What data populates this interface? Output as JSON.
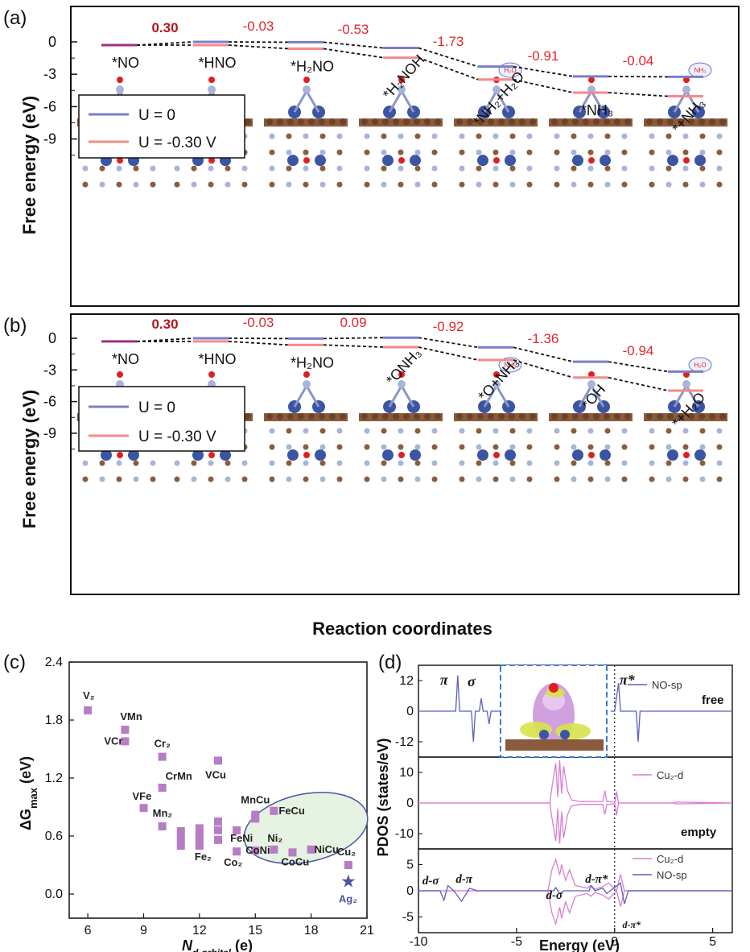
{
  "colors": {
    "u0": "#7b7fc8",
    "um030": "#f48a8a",
    "no_line": "#a0317e",
    "delta_red": "#e3262b",
    "scatter": "#b77dc4",
    "ellipse_fill": "#e6f2e2",
    "ellipse_stroke": "#4a55a0",
    "pdos_cu": "#d97fcf",
    "pdos_no": "#5a5fbf",
    "sub_brown": "#8a5a3c",
    "sub_blue": "#3b55a3",
    "sub_light": "#aab3d8"
  },
  "panel_a": {
    "label": "(a)",
    "ylabel": "Free energy (eV)",
    "yticks": [
      "0",
      "-3",
      "-6",
      "-9"
    ],
    "legend": [
      "U = 0",
      "U = -0.30 V"
    ],
    "steps": [
      "*NO",
      "*HNO",
      "*H₂NO",
      "*H₂NOH",
      "*NH₂+H₂O",
      "*NH₃",
      "*+NH₃"
    ],
    "u0": [
      -0.3,
      0.0,
      -0.03,
      -0.56,
      -2.29,
      -3.2,
      -3.24
    ],
    "um": [
      -0.3,
      -0.3,
      -0.63,
      -1.46,
      -3.49,
      -4.7,
      -5.04
    ],
    "deltas": [
      "0.30",
      "-0.03",
      "-0.53",
      "-1.73",
      "-0.91",
      "-0.04"
    ],
    "molecules": [
      "H₂O",
      "NH₃"
    ]
  },
  "panel_b": {
    "label": "(b)",
    "ylabel": "Free energy (eV)",
    "yticks": [
      "0",
      "-3",
      "-6",
      "-9"
    ],
    "legend": [
      "U = 0",
      "U = -0.30 V"
    ],
    "steps": [
      "*NO",
      "*HNO",
      "*H₂NO",
      "*ONH₃",
      "*O+NH₃",
      "*OH",
      "*+H₂O"
    ],
    "u0": [
      -0.3,
      0.0,
      -0.03,
      0.06,
      -0.86,
      -2.22,
      -3.16
    ],
    "um": [
      -0.3,
      -0.3,
      -0.63,
      -0.84,
      -2.06,
      -3.72,
      -4.96
    ],
    "deltas": [
      "0.30",
      "-0.03",
      "0.09",
      "-0.92",
      "-1.36",
      "-0.94"
    ],
    "molecules": [
      "NH₃",
      "H₂O"
    ]
  },
  "shared_xlabel": "Reaction coordinates",
  "panel_c": {
    "label": "(c)",
    "ylabel": "ΔG",
    "ylabel_sub": "max",
    "ylabel_unit": " (eV)",
    "xlabel": "N",
    "xlabel_sub": "d-orbital",
    "xlabel_unit": " (e)",
    "xticks": [
      "6",
      "9",
      "12",
      "15",
      "18",
      "21"
    ],
    "yticks": [
      "0.0",
      "0.6",
      "1.2",
      "1.8",
      "2.4"
    ],
    "labeled_points": [
      {
        "name": "V₂",
        "x": 6,
        "y": 1.9
      },
      {
        "name": "VMn",
        "x": 8,
        "y": 1.7
      },
      {
        "name": "VCr",
        "x": 8,
        "y": 1.58
      },
      {
        "name": "Cr₂",
        "x": 10,
        "y": 1.42
      },
      {
        "name": "VCu",
        "x": 13,
        "y": 1.38
      },
      {
        "name": "CrMn",
        "x": 10,
        "y": 1.1
      },
      {
        "name": "VFe",
        "x": 9,
        "y": 0.89
      },
      {
        "name": "MnCu",
        "x": 15,
        "y": 0.82
      },
      {
        "name": "FeCu",
        "x": 16,
        "y": 0.86
      },
      {
        "name": "Mn₂",
        "x": 10,
        "y": 0.7
      },
      {
        "name": "FeNi",
        "x": 14,
        "y": 0.66
      },
      {
        "name": "Fe₂",
        "x": 12,
        "y": 0.55
      },
      {
        "name": "Ni₂",
        "x": 16,
        "y": 0.46
      },
      {
        "name": "Co₂",
        "x": 14,
        "y": 0.44
      },
      {
        "name": "CoNi",
        "x": 15,
        "y": 0.45
      },
      {
        "name": "NiCu",
        "x": 18,
        "y": 0.46
      },
      {
        "name": "CoCu",
        "x": 17,
        "y": 0.43
      },
      {
        "name": "Cu₂",
        "x": 20,
        "y": 0.3
      }
    ],
    "unlabeled_points": [
      {
        "x": 11,
        "y": 0.65
      },
      {
        "x": 11,
        "y": 0.57
      },
      {
        "x": 11,
        "y": 0.5
      },
      {
        "x": 12,
        "y": 0.68
      },
      {
        "x": 12,
        "y": 0.6
      },
      {
        "x": 12,
        "y": 0.5
      },
      {
        "x": 13,
        "y": 0.75
      },
      {
        "x": 13,
        "y": 0.66
      },
      {
        "x": 13,
        "y": 0.56
      },
      {
        "x": 15,
        "y": 0.78
      }
    ],
    "highlight": {
      "name": "Ag₂",
      "x": 20,
      "y": 0.13
    }
  },
  "panel_d": {
    "label": "(d)",
    "ylabel": "PDOS (states/eV)",
    "xlabel": "Energy (eV)",
    "xticks": [
      "-10",
      "-5",
      "0",
      "5"
    ],
    "sub1": {
      "yticks": [
        "12",
        "0",
        "-12"
      ],
      "legend": "NO-sp",
      "state": "free",
      "peaks": [
        "π",
        "σ",
        "π*"
      ]
    },
    "sub2": {
      "yticks": [
        "10",
        "0",
        "-10"
      ],
      "legend": "Cu₂-d",
      "state": "empty"
    },
    "sub3": {
      "yticks": [
        "5",
        "0",
        "-5"
      ],
      "legend": [
        "Cu₂-d",
        "NO-sp"
      ],
      "peaks": [
        "d-σ",
        "d-π",
        "d-σ",
        "d-π*",
        "d-π*"
      ]
    }
  }
}
